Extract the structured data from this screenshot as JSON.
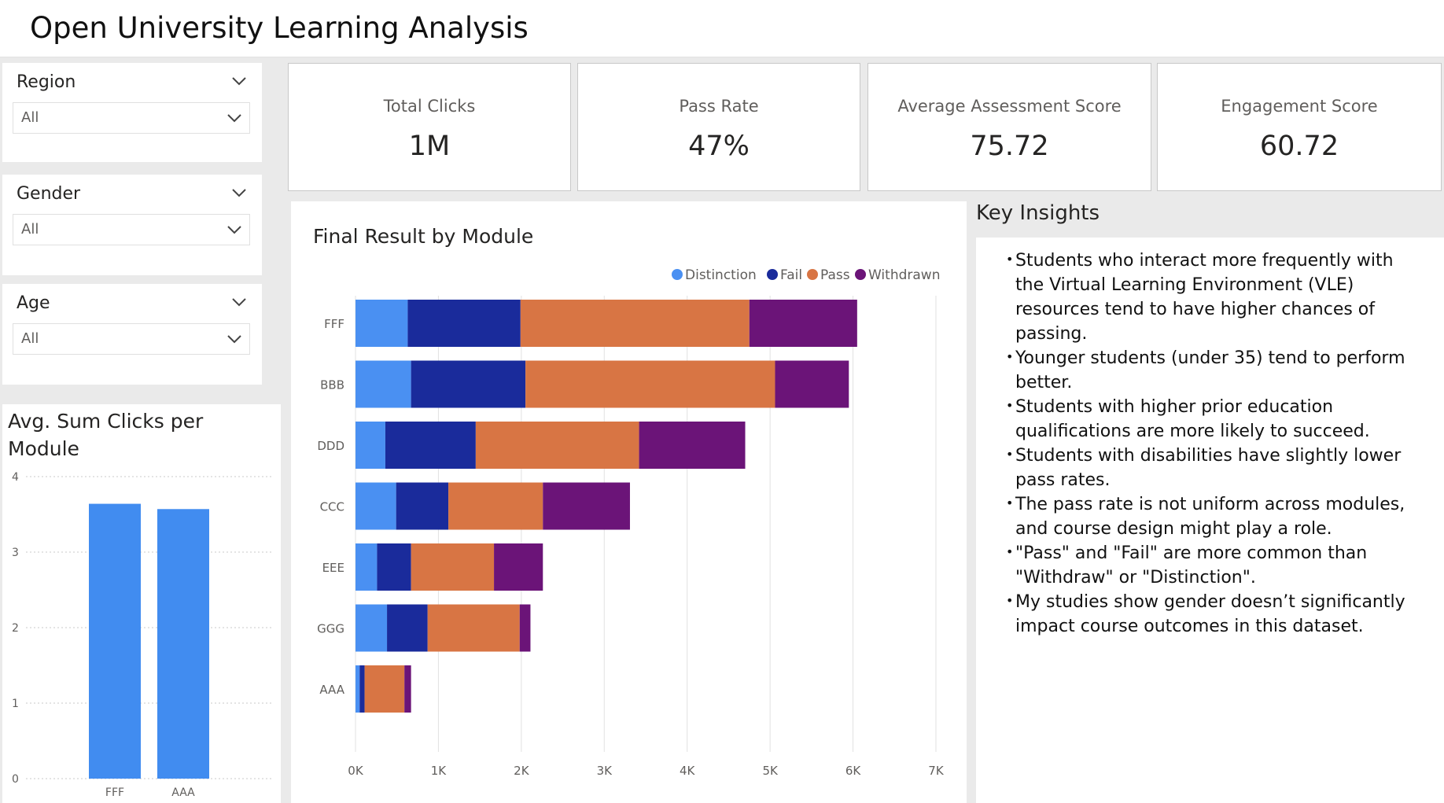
{
  "header": {
    "title": "Open University Learning Analysis"
  },
  "slicers": [
    {
      "label": "Region",
      "value": "All"
    },
    {
      "label": "Gender",
      "value": "All"
    },
    {
      "label": "Age",
      "value": "All"
    }
  ],
  "kpis": [
    {
      "label": "Total Clicks",
      "value": "1M"
    },
    {
      "label": "Pass Rate",
      "value": "47%"
    },
    {
      "label": "Average Assessment Score",
      "value": "75.72"
    },
    {
      "label": "Engagement Score",
      "value": "60.72"
    }
  ],
  "insights": {
    "title": "Key Insights",
    "items": [
      "Students who interact more frequently with the Virtual Learning Environment (VLE) resources tend to have higher chances of passing.",
      "Younger students (under 35) tend to perform better.",
      "Students with higher prior education qualifications are more likely to succeed.",
      "Students with disabilities have slightly lower pass rates.",
      "The pass rate is not uniform across modules, and course design might play a role.",
      "\"Pass\" and \"Fail\" are more common than \"Withdraw\" or \"Distinction\".",
      "My studies show gender doesn’t significantly impact course outcomes in this dataset."
    ]
  },
  "colors": {
    "distinction": "#4a90f2",
    "fail": "#1a2b9b",
    "pass": "#d87544",
    "withdrawn": "#6b1478",
    "bar": "#418cf0"
  },
  "chart_data": [
    {
      "type": "bar",
      "title": "Avg. Sum Clicks per Module",
      "categories": [
        "FFF",
        "AAA"
      ],
      "values": [
        3.64,
        3.57
      ],
      "ylim": [
        0,
        4
      ],
      "yticks": [
        "0",
        "1",
        "2",
        "3",
        "4"
      ],
      "grid": true
    },
    {
      "type": "bar",
      "orientation": "horizontal",
      "stacked": true,
      "title": "Final Result by Module",
      "categories": [
        "FFF",
        "BBB",
        "DDD",
        "CCC",
        "EEE",
        "GGG",
        "AAA"
      ],
      "series": [
        {
          "name": "Distinction",
          "values": [
            630,
            670,
            360,
            490,
            260,
            380,
            50
          ]
        },
        {
          "name": "Fail",
          "values": [
            1360,
            1380,
            1090,
            630,
            410,
            490,
            60
          ]
        },
        {
          "name": "Pass",
          "values": [
            2760,
            3010,
            1970,
            1140,
            1000,
            1110,
            480
          ]
        },
        {
          "name": "Withdrawn",
          "values": [
            1300,
            890,
            1280,
            1050,
            590,
            130,
            80
          ]
        }
      ],
      "xlim": [
        0,
        7000
      ],
      "xticks": [
        "0K",
        "1K",
        "2K",
        "3K",
        "4K",
        "5K",
        "6K",
        "7K"
      ],
      "legend_position": "top-right",
      "grid": true
    }
  ]
}
